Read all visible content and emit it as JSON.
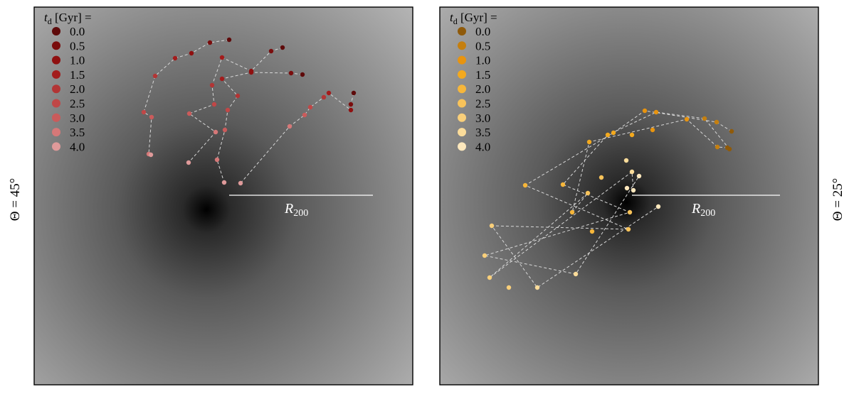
{
  "legend": {
    "title_sym": "t",
    "title_sub": "d",
    "title_rest": " [Gyr] ="
  },
  "r200_label": {
    "sym": "R",
    "sub": "200"
  },
  "panels": [
    {
      "id": "left",
      "theta_label": "Θ = 45°"
    },
    {
      "id": "right",
      "theta_label": "Θ = 25°"
    }
  ],
  "chart_data": [
    {
      "type": "scatter",
      "panel": "left",
      "theta_label": "Θ = 45°",
      "legend_title": "t_d [Gyr] =",
      "r200_label": "R_200",
      "legend_placement": "top-left",
      "grid": false,
      "axes_visible": false,
      "series": [
        {
          "td": "0.0",
          "color": "#5e0a0a",
          "points": [
            [
              322,
              56
            ],
            [
              397,
              67
            ],
            [
              425,
              105
            ],
            [
              497,
              131
            ]
          ]
        },
        {
          "td": "0.5",
          "color": "#7a0d0d",
          "points": [
            [
              295,
              60
            ],
            [
              381,
              72
            ],
            [
              409,
              103
            ],
            [
              493,
              147
            ]
          ]
        },
        {
          "td": "1.0",
          "color": "#8f1010",
          "points": [
            [
              269,
              75
            ],
            [
              353,
              100
            ],
            [
              353,
              102
            ],
            [
              493,
              155
            ]
          ]
        },
        {
          "td": "1.5",
          "color": "#a31c1c",
          "points": [
            [
              246,
              82
            ],
            [
              312,
              81
            ],
            [
              312,
              111
            ],
            [
              462,
              131
            ]
          ]
        },
        {
          "td": "2.0",
          "color": "#b23535",
          "points": [
            [
              218,
              107
            ],
            [
              298,
              120
            ],
            [
              334,
              135
            ],
            [
              455,
              137
            ]
          ]
        },
        {
          "td": "2.5",
          "color": "#c04747",
          "points": [
            [
              202,
              158
            ],
            [
              301,
              147
            ],
            [
              320,
              155
            ],
            [
              436,
              151
            ]
          ]
        },
        {
          "td": "3.0",
          "color": "#ca5b5b",
          "points": [
            [
              213,
              165
            ],
            [
              266,
              160
            ],
            [
              316,
              183
            ],
            [
              428,
              162
            ]
          ]
        },
        {
          "td": "3.5",
          "color": "#d67878",
          "points": [
            [
              209,
              217
            ],
            [
              303,
              186
            ],
            [
              305,
              225
            ],
            [
              407,
              178
            ]
          ]
        },
        {
          "td": "4.0",
          "color": "#df9a9a",
          "points": [
            [
              212,
              218
            ],
            [
              265,
              229
            ],
            [
              315,
              257
            ],
            [
              338,
              258
            ]
          ]
        }
      ]
    },
    {
      "type": "scatter",
      "panel": "right",
      "theta_label": "Θ = 25°",
      "legend_title": "t_d [Gyr] =",
      "r200_label": "R_200",
      "legend_placement": "top-left",
      "grid": false,
      "axes_visible": false,
      "series": [
        {
          "td": "0.0",
          "color": "#8f5a0a",
          "points": [
            [
              1028,
              185
            ],
            [
              1025,
              210
            ],
            [
              1022,
              208
            ]
          ]
        },
        {
          "td": "0.5",
          "color": "#c57f0f",
          "points": [
            [
              1007,
              172
            ],
            [
              990,
              167
            ],
            [
              1008,
              207
            ]
          ]
        },
        {
          "td": "1.0",
          "color": "#e8940f",
          "points": [
            [
              906,
              156
            ],
            [
              922,
              158
            ],
            [
              965,
              168
            ],
            [
              917,
              183
            ]
          ]
        },
        {
          "td": "1.5",
          "color": "#f3a91e",
          "points": [
            [
              862,
              187
            ],
            [
              854,
              190
            ],
            [
              828,
              200
            ],
            [
              888,
              190
            ]
          ]
        },
        {
          "td": "2.0",
          "color": "#f6b63a",
          "points": [
            [
              738,
              261
            ],
            [
              791,
              260
            ],
            [
              804,
              299
            ],
            [
              832,
              326
            ]
          ]
        },
        {
          "td": "2.5",
          "color": "#f8c35a",
          "points": [
            [
              883,
              323
            ],
            [
              885,
              299
            ],
            [
              826,
              272
            ],
            [
              845,
              250
            ]
          ]
        },
        {
          "td": "3.0",
          "color": "#f9cf7a",
          "points": [
            [
              691,
              318
            ],
            [
              681,
              360
            ],
            [
              688,
              391
            ],
            [
              715,
              405
            ]
          ]
        },
        {
          "td": "3.5",
          "color": "#fbdc9a",
          "points": [
            [
              755,
              405
            ],
            [
              809,
              386
            ],
            [
              888,
              242
            ],
            [
              880,
              226
            ]
          ]
        },
        {
          "td": "4.0",
          "color": "#fde8bd",
          "points": [
            [
              925,
              291
            ],
            [
              898,
              248
            ],
            [
              890,
              268
            ],
            [
              881,
              265
            ]
          ]
        }
      ]
    }
  ]
}
